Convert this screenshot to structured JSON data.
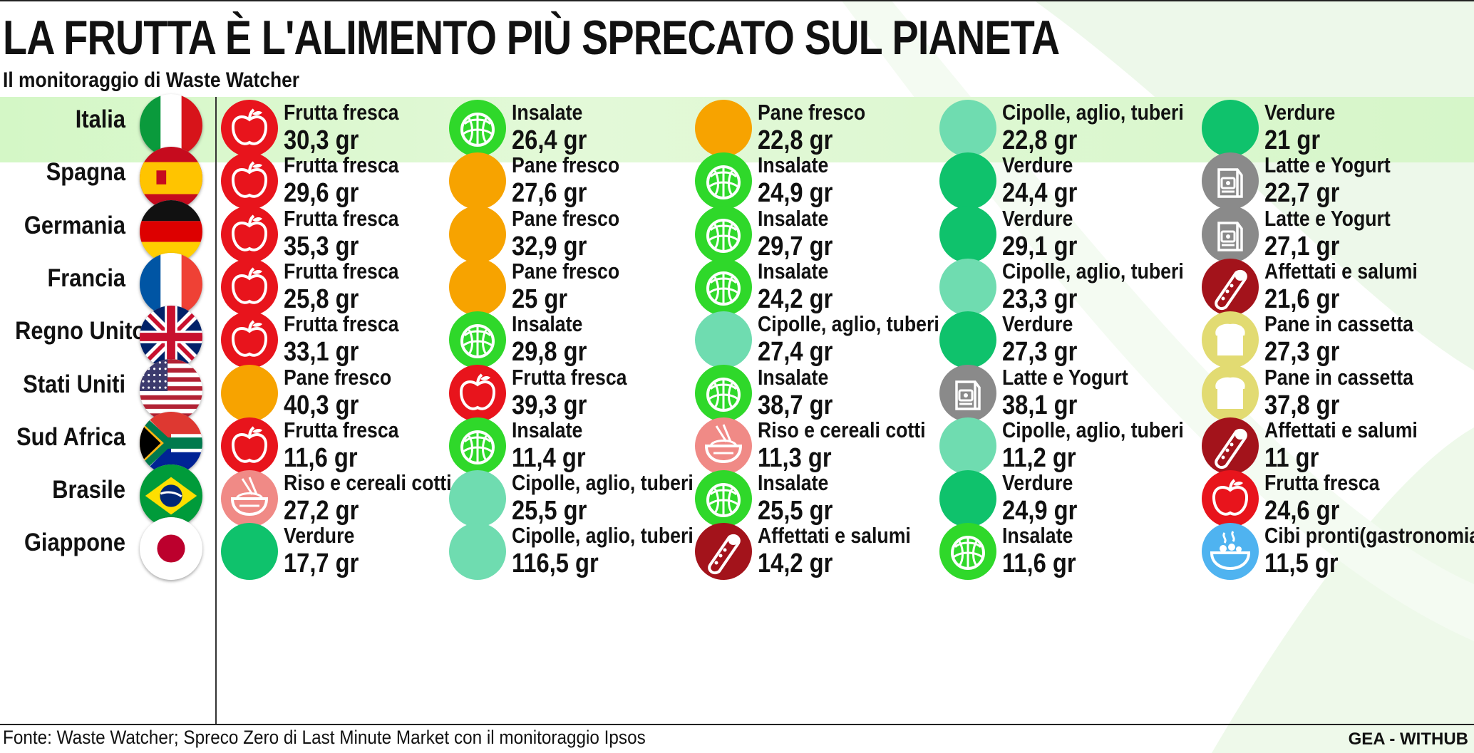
{
  "header": {
    "title": "LA FRUTTA È L'ALIMENTO PIÙ SPRECATO SUL PIANETA",
    "subtitle": "Il monitoraggio di Waste Watcher"
  },
  "footer": {
    "source": "Fonte: Waste Watcher; Spreco Zero di Last Minute Market con il monitoraggio Ipsos",
    "credit": "GEA - WITHUB"
  },
  "colors": {
    "fruit": "#e8141c",
    "salad": "#2fd82a",
    "bread": "#f7a300",
    "onion": "#6fdcb0",
    "veg": "#0fc26c",
    "dairy": "#8a8a8a",
    "cured": "#a3131b",
    "sliced_bread": "#e2db72",
    "rice": "#f08a86",
    "ready": "#4fb3f0",
    "highlight": "#d4f7c6"
  },
  "rows": [
    {
      "country": "Italia",
      "flag": "italy-flag",
      "items": [
        {
          "icon": "apple-icon",
          "label": "Frutta fresca",
          "value": "30,3 gr"
        },
        {
          "icon": "lettuce-icon",
          "label": "Insalate",
          "value": "26,4 gr"
        },
        {
          "icon": "bread-icon",
          "label": "Pane fresco",
          "value": "22,8 gr"
        },
        {
          "icon": "onion-icon",
          "label": "Cipolle, aglio, tuberi",
          "value": "22,8 gr"
        },
        {
          "icon": "vegetables-icon",
          "label": "Verdure",
          "value": "21 gr"
        }
      ]
    },
    {
      "country": "Spagna",
      "flag": "spain-flag",
      "items": [
        {
          "icon": "apple-icon",
          "label": "Frutta fresca",
          "value": "29,6 gr"
        },
        {
          "icon": "bread-icon",
          "label": "Pane fresco",
          "value": "27,6 gr"
        },
        {
          "icon": "lettuce-icon",
          "label": "Insalate",
          "value": "24,9 gr"
        },
        {
          "icon": "vegetables-icon",
          "label": "Verdure",
          "value": "24,4 gr"
        },
        {
          "icon": "milk-carton-icon",
          "label": "Latte e Yogurt",
          "value": "22,7 gr"
        }
      ]
    },
    {
      "country": "Germania",
      "flag": "germany-flag",
      "items": [
        {
          "icon": "apple-icon",
          "label": "Frutta fresca",
          "value": "35,3 gr"
        },
        {
          "icon": "bread-icon",
          "label": "Pane fresco",
          "value": "32,9 gr"
        },
        {
          "icon": "lettuce-icon",
          "label": "Insalate",
          "value": "29,7 gr"
        },
        {
          "icon": "vegetables-icon",
          "label": "Verdure",
          "value": "29,1 gr"
        },
        {
          "icon": "milk-carton-icon",
          "label": "Latte e Yogurt",
          "value": "27,1 gr"
        }
      ]
    },
    {
      "country": "Francia",
      "flag": "france-flag",
      "items": [
        {
          "icon": "apple-icon",
          "label": "Frutta fresca",
          "value": "25,8 gr"
        },
        {
          "icon": "bread-icon",
          "label": "Pane fresco",
          "value": "25 gr"
        },
        {
          "icon": "lettuce-icon",
          "label": "Insalate",
          "value": "24,2 gr"
        },
        {
          "icon": "onion-icon",
          "label": "Cipolle, aglio, tuberi",
          "value": "23,3 gr"
        },
        {
          "icon": "salami-icon",
          "label": "Affettati e salumi",
          "value": "21,6 gr"
        }
      ]
    },
    {
      "country": "Regno Unito",
      "flag": "uk-flag",
      "items": [
        {
          "icon": "apple-icon",
          "label": "Frutta fresca",
          "value": "33,1 gr"
        },
        {
          "icon": "lettuce-icon",
          "label": "Insalate",
          "value": "29,8 gr"
        },
        {
          "icon": "onion-icon",
          "label": "Cipolle, aglio, tuberi",
          "value": "27,4 gr"
        },
        {
          "icon": "vegetables-icon",
          "label": "Verdure",
          "value": "27,3 gr"
        },
        {
          "icon": "toast-icon",
          "label": "Pane in cassetta",
          "value": "27,3 gr"
        }
      ]
    },
    {
      "country": "Stati Uniti",
      "flag": "usa-flag",
      "items": [
        {
          "icon": "bread-icon",
          "label": "Pane fresco",
          "value": "40,3 gr"
        },
        {
          "icon": "apple-icon",
          "label": "Frutta fresca",
          "value": "39,3 gr"
        },
        {
          "icon": "lettuce-icon",
          "label": "Insalate",
          "value": "38,7 gr"
        },
        {
          "icon": "milk-carton-icon",
          "label": "Latte e Yogurt",
          "value": "38,1 gr"
        },
        {
          "icon": "toast-icon",
          "label": "Pane in cassetta",
          "value": "37,8 gr"
        }
      ]
    },
    {
      "country": "Sud Africa",
      "flag": "south-africa-flag",
      "items": [
        {
          "icon": "apple-icon",
          "label": "Frutta fresca",
          "value": "11,6 gr"
        },
        {
          "icon": "lettuce-icon",
          "label": "Insalate",
          "value": "11,4 gr"
        },
        {
          "icon": "rice-bowl-icon",
          "label": "Riso e cereali cotti",
          "value": "11,3 gr"
        },
        {
          "icon": "onion-icon",
          "label": "Cipolle, aglio, tuberi",
          "value": "11,2 gr"
        },
        {
          "icon": "salami-icon",
          "label": "Affettati e salumi",
          "value": "11 gr"
        }
      ]
    },
    {
      "country": "Brasile",
      "flag": "brazil-flag",
      "items": [
        {
          "icon": "rice-bowl-icon",
          "label": "Riso e cereali cotti",
          "value": "27,2 gr"
        },
        {
          "icon": "onion-icon",
          "label": "Cipolle, aglio, tuberi",
          "value": "25,5 gr"
        },
        {
          "icon": "lettuce-icon",
          "label": "Insalate",
          "value": "25,5 gr"
        },
        {
          "icon": "vegetables-icon",
          "label": "Verdure",
          "value": "24,9 gr"
        },
        {
          "icon": "apple-icon",
          "label": "Frutta fresca",
          "value": "24,6 gr"
        }
      ]
    },
    {
      "country": "Giappone",
      "flag": "japan-flag",
      "items": [
        {
          "icon": "vegetables-icon",
          "label": "Verdure",
          "value": "17,7 gr"
        },
        {
          "icon": "onion-icon",
          "label": "Cipolle, aglio, tuberi",
          "value": "116,5 gr"
        },
        {
          "icon": "salami-icon",
          "label": "Affettati e salumi",
          "value": "14,2 gr"
        },
        {
          "icon": "lettuce-icon",
          "label": "Insalate",
          "value": "11,6 gr"
        },
        {
          "icon": "ready-meal-icon",
          "label": "Cibi pronti(gastronomia)",
          "value": "11,5 gr"
        }
      ]
    }
  ]
}
